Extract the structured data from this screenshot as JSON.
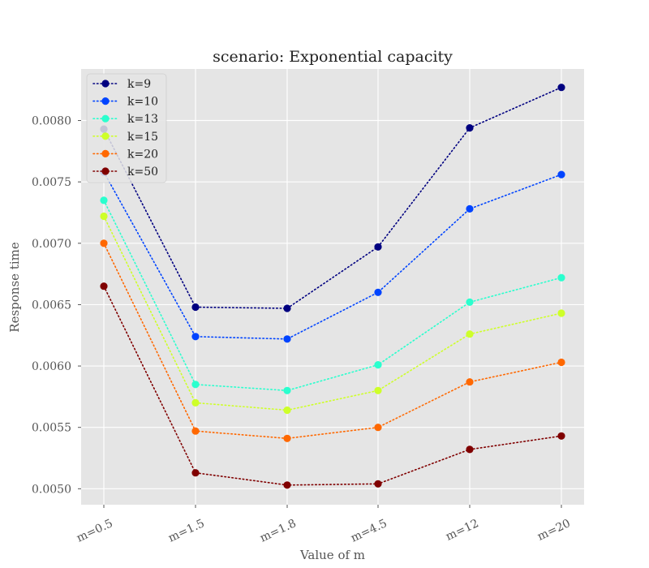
{
  "chart_data": {
    "type": "line",
    "title": "scenario: Exponential capacity",
    "xlabel": "Value of m",
    "ylabel": "Response time",
    "categories": [
      "m=0.5",
      "m=1.5",
      "m=1.8",
      "m=4.5",
      "m=12",
      "m=20"
    ],
    "ylim": [
      0.00487,
      0.00842
    ],
    "yticks": [
      0.005,
      0.0055,
      0.006,
      0.0065,
      0.007,
      0.0075,
      0.008
    ],
    "ytick_labels": [
      "0.0050",
      "0.0055",
      "0.0060",
      "0.0065",
      "0.0070",
      "0.0075",
      "0.0080"
    ],
    "grid": true,
    "legend_position": "top-left",
    "line_style": "dotted",
    "series": [
      {
        "name": "k=9",
        "color": "#000080",
        "values": [
          0.00793,
          0.00648,
          0.00647,
          0.00697,
          0.00794,
          0.00827
        ]
      },
      {
        "name": "k=10",
        "color": "#0044ff",
        "values": [
          0.00758,
          0.00624,
          0.00622,
          0.0066,
          0.00728,
          0.00756
        ]
      },
      {
        "name": "k=13",
        "color": "#2affce",
        "values": [
          0.00735,
          0.00585,
          0.0058,
          0.00601,
          0.00652,
          0.00672
        ]
      },
      {
        "name": "k=15",
        "color": "#ceff29",
        "values": [
          0.00722,
          0.0057,
          0.00564,
          0.0058,
          0.00626,
          0.00643
        ]
      },
      {
        "name": "k=20",
        "color": "#ff6800",
        "values": [
          0.007,
          0.00547,
          0.00541,
          0.0055,
          0.00587,
          0.00603
        ]
      },
      {
        "name": "k=50",
        "color": "#800000",
        "values": [
          0.00665,
          0.00513,
          0.00503,
          0.00504,
          0.00532,
          0.00543
        ]
      }
    ],
    "colors": {
      "plot_background": "#e5e5e5",
      "grid": "#ffffff",
      "legend_background": "#e5e5e5"
    }
  }
}
